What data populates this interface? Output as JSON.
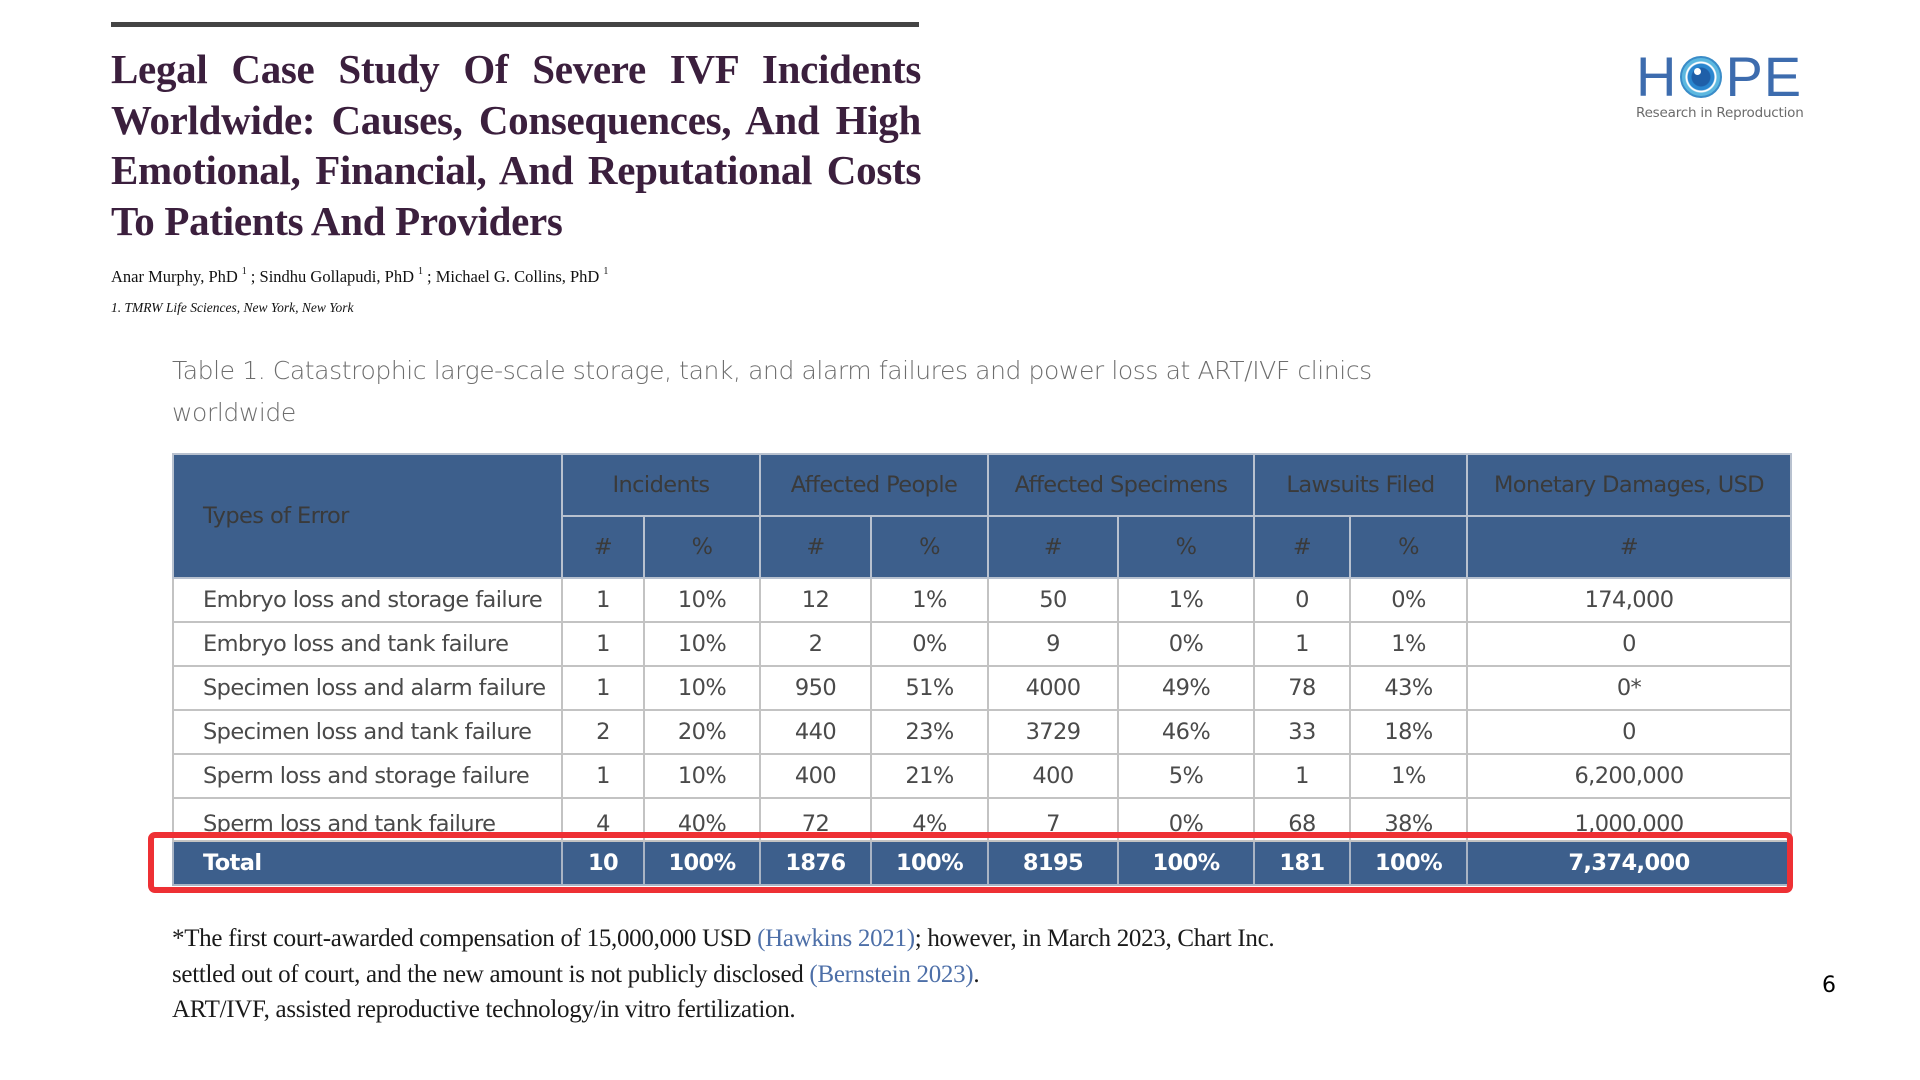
{
  "paper": {
    "title": "Legal Case Study Of Severe IVF Incidents Worldwide: Causes, Consequences, And High Emotional, Financial, And Reputational Costs To Patients And Providers",
    "authors": [
      {
        "name": "Anar Murphy, PhD",
        "affiliation_mark": "1",
        "separator": ";"
      },
      {
        "name": "Sindhu Gollapudi, PhD",
        "affiliation_mark": "1",
        "separator": ";"
      },
      {
        "name": "Michael G. Collins, PhD",
        "affiliation_mark": "1",
        "separator": ""
      }
    ],
    "affiliation": "1. TMRW Life Sciences, New York, New York"
  },
  "logo": {
    "word_left": "H",
    "word_right": "PE",
    "tagline": "Research in Reproduction",
    "icon": "eye-icon",
    "color": "#3d6cae"
  },
  "table": {
    "caption": "Table 1. Catastrophic large-scale storage, tank, and alarm failures and power loss at ART/IVF clinics worldwide",
    "row_header": "Types of Error",
    "groups": [
      "Incidents",
      "Affected People",
      "Affected Specimens",
      "Lawsuits Filed",
      "Monetary Damages, USD"
    ],
    "subheaders": [
      "#",
      "%",
      "#",
      "%",
      "#",
      "%",
      "#",
      "%",
      "#"
    ],
    "rows": [
      {
        "type": "Embryo loss and storage failure",
        "values": [
          "1",
          "10%",
          "12",
          "1%",
          "50",
          "1%",
          "0",
          "0%",
          "174,000"
        ]
      },
      {
        "type": "Embryo loss and tank failure",
        "values": [
          "1",
          "10%",
          "2",
          "0%",
          "9",
          "0%",
          "1",
          "1%",
          "0"
        ]
      },
      {
        "type": "Specimen loss and alarm failure",
        "values": [
          "1",
          "10%",
          "950",
          "51%",
          "4000",
          "49%",
          "78",
          "43%",
          "0*"
        ]
      },
      {
        "type": "Specimen loss and tank failure",
        "values": [
          "2",
          "20%",
          "440",
          "23%",
          "3729",
          "46%",
          "33",
          "18%",
          "0"
        ]
      },
      {
        "type": "Sperm loss and storage failure",
        "values": [
          "1",
          "10%",
          "400",
          "21%",
          "400",
          "5%",
          "1",
          "1%",
          "6,200,000"
        ]
      },
      {
        "type": "Sperm loss and tank failure",
        "values": [
          "4",
          "40%",
          "72",
          "4%",
          "7",
          "0%",
          "68",
          "38%",
          "1,000,000"
        ]
      }
    ],
    "total": {
      "label": "Total",
      "values": [
        "10",
        "100%",
        "1876",
        "100%",
        "8195",
        "100%",
        "181",
        "100%",
        "7,374,000"
      ]
    },
    "colors": {
      "header_bg": "#3d5f8c",
      "highlight": "#ee3034"
    }
  },
  "footnotes": {
    "line1_before": "*The first court-awarded compensation of 15,000,000 USD ",
    "line1_cite": "(Hawkins 2021)",
    "line1_after": "; however, in March 2023, Chart Inc.",
    "line2_before": "settled out of court, and the new amount is not publicly disclosed ",
    "line2_cite": "(Bernstein 2023)",
    "line2_after": ".",
    "line3": "ART/IVF, assisted reproductive technology/in vitro fertilization."
  },
  "page_number": "6"
}
